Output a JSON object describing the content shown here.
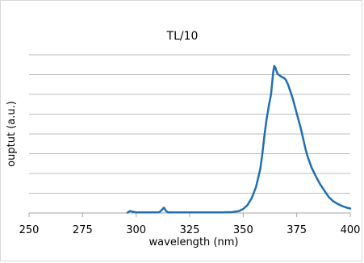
{
  "chart_data": {
    "type": "line",
    "title": "TL/10",
    "xlabel": "wavelength (nm)",
    "ylabel": "ouptut (a.u.)",
    "xlim": [
      250,
      400
    ],
    "ylim": [
      0,
      1
    ],
    "x_ticks": [
      "250",
      "275",
      "300",
      "325",
      "350",
      "375",
      "400"
    ],
    "x_tick_values": [
      250,
      275,
      300,
      325,
      350,
      375,
      400
    ],
    "y_gridline_count": 8,
    "grid": true,
    "legend": "none",
    "colors": {
      "series": "#1f6fb2",
      "grid": "#a6a6a6",
      "frame": "#d9d9d9"
    },
    "series": [
      {
        "x": [
          296,
          297,
          300,
          305,
          310,
          311,
          312,
          313,
          314,
          315,
          320,
          330,
          340,
          345,
          348,
          350,
          352,
          354,
          356,
          358,
          359,
          360,
          361,
          362,
          363,
          364,
          364.5,
          365,
          365.5,
          366,
          367,
          368,
          369,
          370,
          371,
          372,
          373,
          374,
          375,
          376,
          377,
          378,
          379,
          380,
          382,
          384,
          386,
          388,
          390,
          392,
          394,
          396,
          398,
          400
        ],
        "y": [
          0.002,
          0.012,
          0.004,
          0.004,
          0.004,
          0.006,
          0.02,
          0.034,
          0.012,
          0.004,
          0.004,
          0.004,
          0.004,
          0.006,
          0.012,
          0.025,
          0.05,
          0.095,
          0.165,
          0.28,
          0.38,
          0.5,
          0.6,
          0.68,
          0.75,
          0.89,
          0.93,
          0.92,
          0.9,
          0.88,
          0.87,
          0.86,
          0.855,
          0.84,
          0.81,
          0.77,
          0.73,
          0.68,
          0.63,
          0.58,
          0.53,
          0.47,
          0.41,
          0.36,
          0.285,
          0.23,
          0.18,
          0.14,
          0.1,
          0.075,
          0.058,
          0.045,
          0.035,
          0.028
        ]
      }
    ]
  }
}
